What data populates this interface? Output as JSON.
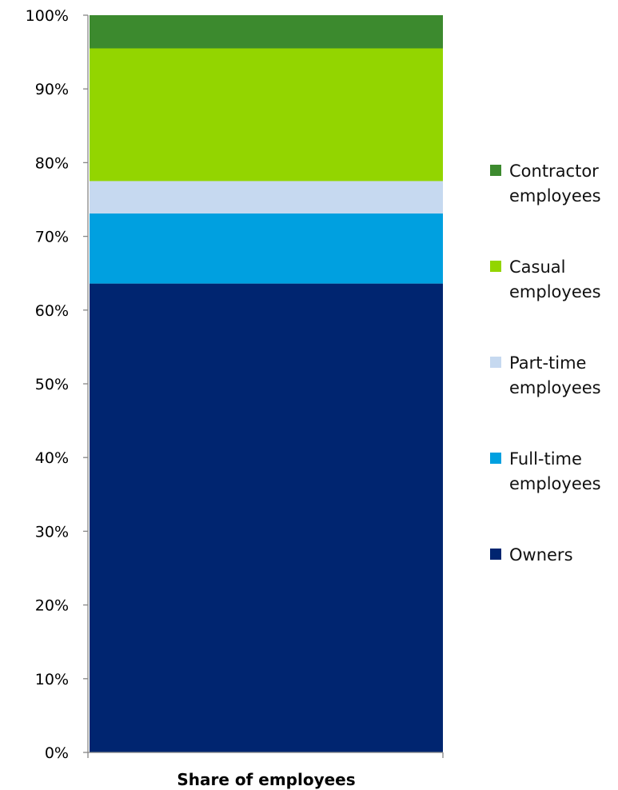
{
  "chart_data": {
    "type": "bar",
    "stacked": true,
    "categories": [
      "Share of employees"
    ],
    "series": [
      {
        "name": "Owners",
        "values": [
          63.6
        ],
        "color": "#002570"
      },
      {
        "name": "Full-time employees",
        "values": [
          9.5
        ],
        "color": "#00A0E0"
      },
      {
        "name": "Part-time employees",
        "values": [
          4.4
        ],
        "color": "#C6D9F0"
      },
      {
        "name": "Casual employees",
        "values": [
          18.0
        ],
        "color": "#93D500"
      },
      {
        "name": "Contractor employees",
        "values": [
          4.5
        ],
        "color": "#3C8A2E"
      }
    ],
    "ylim": [
      0,
      100
    ],
    "yticks": [
      "0%",
      "10%",
      "20%",
      "30%",
      "40%",
      "50%",
      "60%",
      "70%",
      "80%",
      "90%",
      "100%"
    ],
    "xlabel": "",
    "ylabel": "",
    "title": "",
    "legend": {
      "position": "right",
      "order": [
        "Contractor employees",
        "Casual employees",
        "Part-time employees",
        "Full-time employees",
        "Owners"
      ]
    },
    "grid": false
  }
}
